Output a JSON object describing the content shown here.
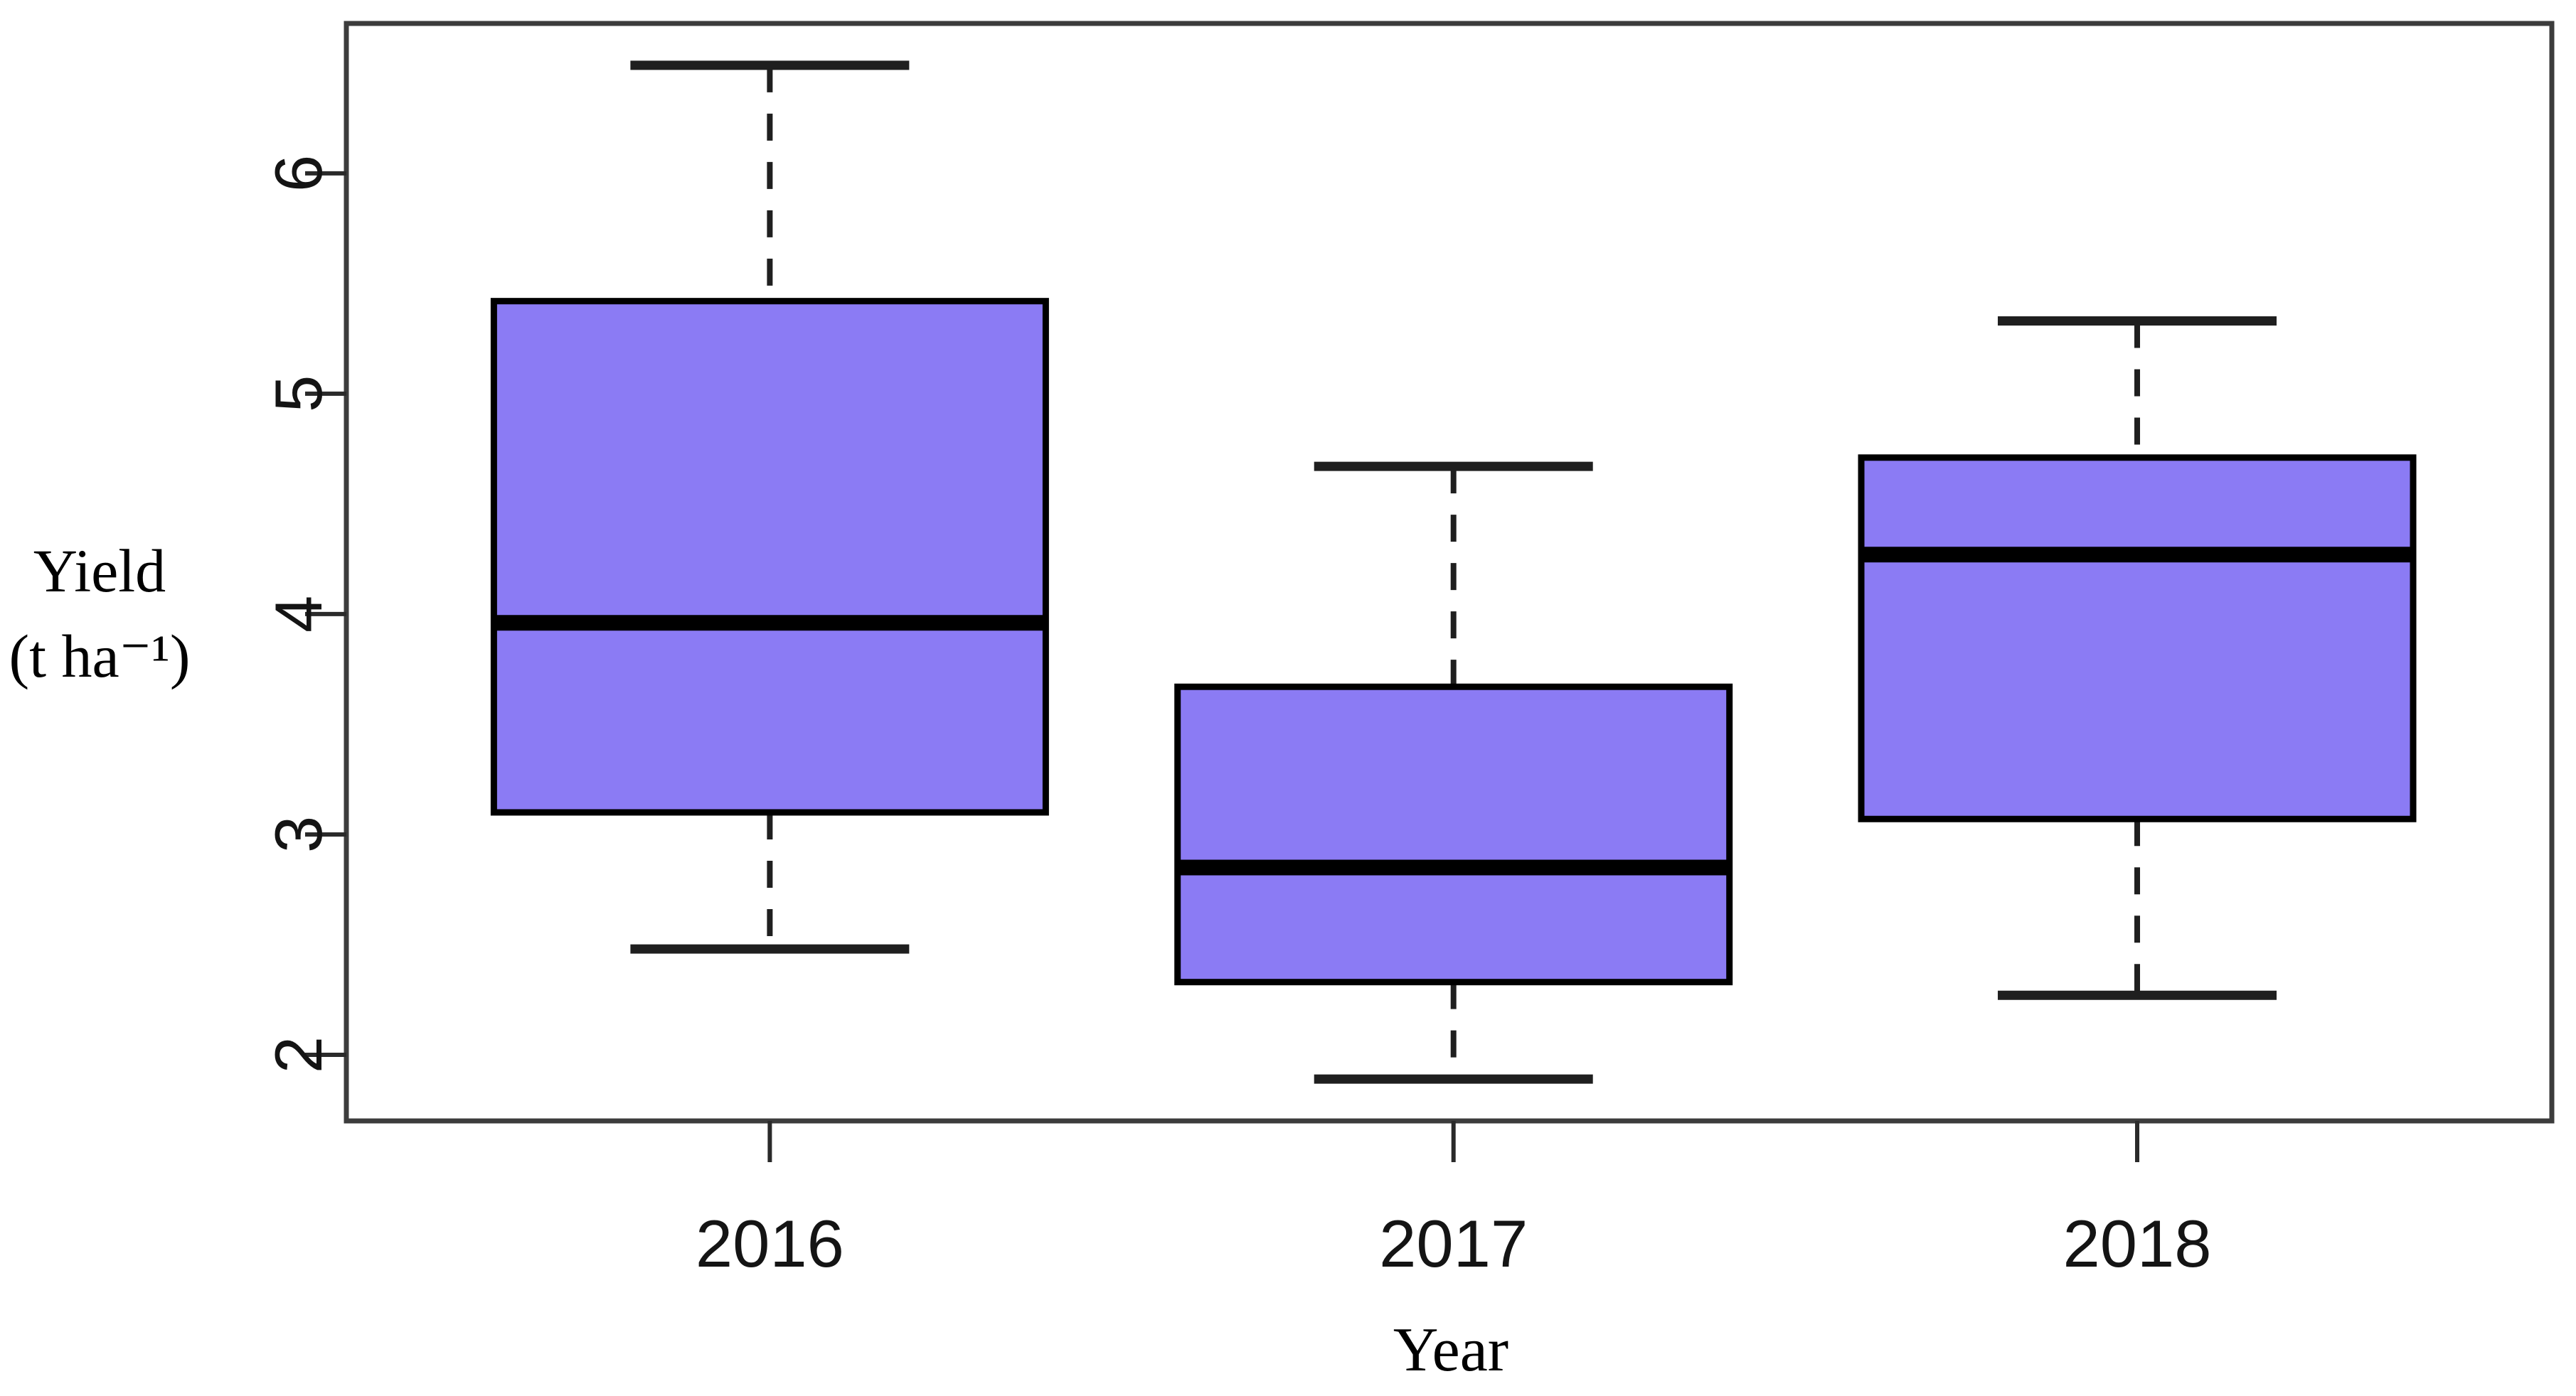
{
  "figure": {
    "ylabel_line1": "Yield",
    "ylabel_line2": "(t ha⁻¹)",
    "xlabel": "Year"
  },
  "chart_data": {
    "type": "boxplot",
    "title": "",
    "xlabel": "Year",
    "ylabel": "Yield (t ha⁻¹)",
    "categories": [
      "2016",
      "2017",
      "2018"
    ],
    "yticks": [
      2,
      3,
      4,
      5,
      6
    ],
    "ylim": [
      1.7,
      6.68
    ],
    "grid": false,
    "legend": false,
    "series": [
      {
        "name": "2016",
        "whisker_low": 2.48,
        "q1": 3.1,
        "median": 3.96,
        "q3": 5.42,
        "whisker_high": 6.49
      },
      {
        "name": "2017",
        "whisker_low": 1.89,
        "q1": 2.33,
        "median": 2.85,
        "q3": 3.67,
        "whisker_high": 4.67
      },
      {
        "name": "2018",
        "whisker_low": 2.27,
        "q1": 3.07,
        "median": 4.27,
        "q3": 4.71,
        "whisker_high": 5.33
      }
    ],
    "colors": {
      "box_fill": "#8B7BF4",
      "box_border": "#000000",
      "median": "#000000",
      "whisker": "#1f1f1f",
      "axis": "#2a2a2a",
      "text": "#000000",
      "background": "#ffffff"
    }
  }
}
